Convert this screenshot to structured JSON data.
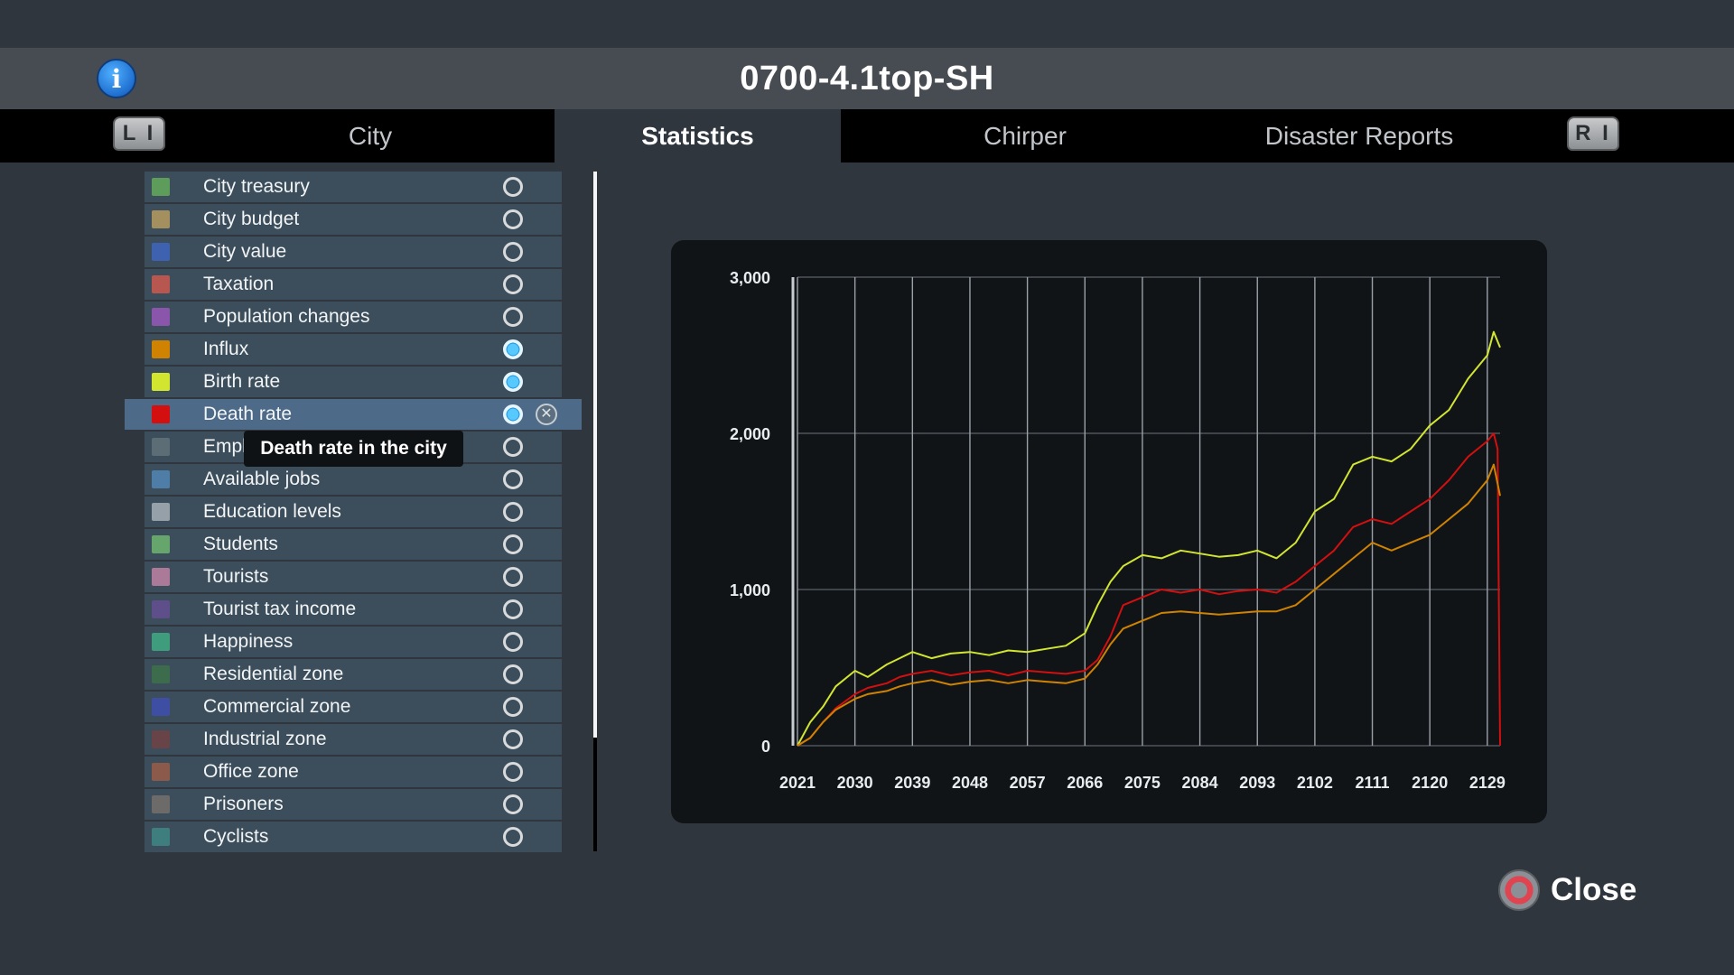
{
  "header": {
    "title": "0700-4.1top-SH",
    "info_icon": "info-icon",
    "info_glyph": "i"
  },
  "tabs": [
    {
      "label": "City",
      "active": false
    },
    {
      "label": "Statistics",
      "active": true
    },
    {
      "label": "Chirper",
      "active": false
    },
    {
      "label": "Disaster Reports",
      "active": false
    }
  ],
  "shoulder": {
    "left": "L I",
    "right": "R I"
  },
  "stats": [
    {
      "label": "City treasury",
      "color": "#5e9c5c",
      "on": false
    },
    {
      "label": "City budget",
      "color": "#a48f5e",
      "on": false
    },
    {
      "label": "City value",
      "color": "#3f62b0",
      "on": false
    },
    {
      "label": "Taxation",
      "color": "#b8574f",
      "on": false
    },
    {
      "label": "Population changes",
      "color": "#8a56ab",
      "on": false
    },
    {
      "label": "Influx",
      "color": "#cf8300",
      "on": true
    },
    {
      "label": "Birth rate",
      "color": "#d2e52f",
      "on": true
    },
    {
      "label": "Death rate",
      "color": "#d30f0f",
      "on": true,
      "selected": true
    },
    {
      "label": "Employment",
      "color": "#5c6d76",
      "on": false
    },
    {
      "label": "Available jobs",
      "color": "#4e7ea8",
      "on": false
    },
    {
      "label": "Education levels",
      "color": "#95a0a8",
      "on": false
    },
    {
      "label": "Students",
      "color": "#66a66d",
      "on": false
    },
    {
      "label": "Tourists",
      "color": "#aa7a98",
      "on": false
    },
    {
      "label": "Tourist tax income",
      "color": "#5e4f8a",
      "on": false
    },
    {
      "label": "Happiness",
      "color": "#3f9c7d",
      "on": false
    },
    {
      "label": "Residential zone",
      "color": "#3c6c4c",
      "on": false
    },
    {
      "label": "Commercial zone",
      "color": "#3e4ea3",
      "on": false
    },
    {
      "label": "Industrial zone",
      "color": "#684448",
      "on": false
    },
    {
      "label": "Office zone",
      "color": "#8c5a4a",
      "on": false
    },
    {
      "label": "Prisoners",
      "color": "#6d6a6a",
      "on": false
    },
    {
      "label": "Cyclists",
      "color": "#3e7e7e",
      "on": false
    }
  ],
  "tooltip": {
    "text": "Death rate in the city"
  },
  "remove_glyph": "✕",
  "chart_data": {
    "type": "line",
    "ylim": [
      0,
      3000
    ],
    "y_ticks": [
      0,
      1000,
      2000,
      3000
    ],
    "y_tick_labels": [
      "0",
      "1,000",
      "2,000",
      "3,000"
    ],
    "x_ticks": [
      2021,
      2030,
      2039,
      2048,
      2057,
      2066,
      2075,
      2084,
      2093,
      2102,
      2111,
      2120,
      2129
    ],
    "xlim": [
      2021,
      2131
    ],
    "grid": true,
    "series": [
      {
        "name": "Birth rate",
        "color": "#d2e52f",
        "x": [
          2021,
          2023,
          2025,
          2027,
          2030,
          2032,
          2035,
          2037,
          2039,
          2042,
          2045,
          2048,
          2051,
          2054,
          2057,
          2060,
          2063,
          2066,
          2068,
          2070,
          2072,
          2075,
          2078,
          2081,
          2084,
          2087,
          2090,
          2093,
          2096,
          2099,
          2102,
          2105,
          2108,
          2111,
          2114,
          2117,
          2120,
          2123,
          2126,
          2129,
          2130,
          2131
        ],
        "y": [
          0,
          150,
          250,
          380,
          480,
          440,
          520,
          560,
          600,
          560,
          590,
          600,
          580,
          610,
          600,
          620,
          640,
          720,
          900,
          1050,
          1150,
          1220,
          1200,
          1250,
          1230,
          1210,
          1220,
          1250,
          1200,
          1300,
          1500,
          1580,
          1800,
          1850,
          1820,
          1900,
          2050,
          2150,
          2350,
          2500,
          2650,
          2550
        ]
      },
      {
        "name": "Death rate",
        "color": "#d30f0f",
        "x": [
          2021,
          2023,
          2025,
          2027,
          2030,
          2032,
          2035,
          2037,
          2039,
          2042,
          2045,
          2048,
          2051,
          2054,
          2057,
          2060,
          2063,
          2066,
          2068,
          2070,
          2072,
          2075,
          2078,
          2081,
          2084,
          2087,
          2090,
          2093,
          2096,
          2099,
          2102,
          2105,
          2108,
          2111,
          2114,
          2117,
          2120,
          2123,
          2126,
          2129,
          2130,
          2130.6,
          2131
        ],
        "y": [
          0,
          50,
          150,
          240,
          330,
          370,
          400,
          440,
          460,
          480,
          450,
          470,
          480,
          450,
          480,
          470,
          460,
          480,
          550,
          700,
          900,
          950,
          1000,
          980,
          1000,
          970,
          990,
          1000,
          980,
          1050,
          1150,
          1250,
          1400,
          1450,
          1420,
          1500,
          1580,
          1700,
          1850,
          1950,
          2000,
          1900,
          0
        ]
      },
      {
        "name": "Influx",
        "color": "#cf8300",
        "x": [
          2021,
          2023,
          2025,
          2027,
          2030,
          2032,
          2035,
          2037,
          2039,
          2042,
          2045,
          2048,
          2051,
          2054,
          2057,
          2060,
          2063,
          2066,
          2068,
          2070,
          2072,
          2075,
          2078,
          2081,
          2084,
          2087,
          2090,
          2093,
          2096,
          2099,
          2102,
          2105,
          2108,
          2111,
          2114,
          2117,
          2120,
          2123,
          2126,
          2129,
          2130,
          2131
        ],
        "y": [
          0,
          50,
          150,
          230,
          300,
          330,
          350,
          380,
          400,
          420,
          390,
          410,
          420,
          400,
          420,
          410,
          400,
          430,
          520,
          650,
          750,
          800,
          850,
          860,
          850,
          840,
          850,
          860,
          860,
          900,
          1000,
          1100,
          1200,
          1300,
          1250,
          1300,
          1350,
          1450,
          1550,
          1700,
          1800,
          1600
        ]
      }
    ]
  },
  "close": {
    "label": "Close"
  }
}
